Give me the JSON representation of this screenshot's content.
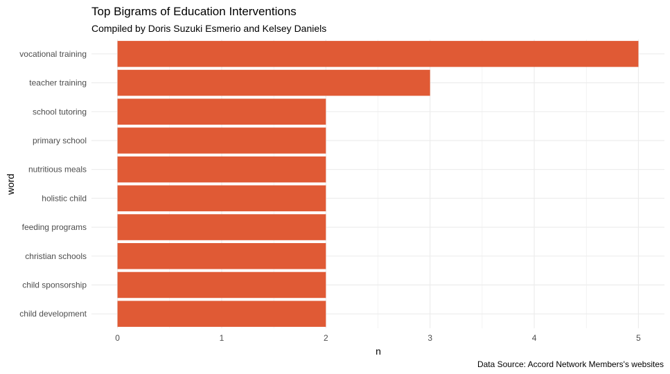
{
  "chart_data": {
    "type": "bar",
    "orientation": "horizontal",
    "title": "Top Bigrams of Education Interventions",
    "subtitle": "Compiled by Doris Suzuki Esmerio and Kelsey Daniels",
    "caption": "Data Source: Accord Network Members's websites",
    "xlabel": "n",
    "ylabel": "word",
    "categories": [
      "vocational training",
      "teacher training",
      "school tutoring",
      "primary school",
      "nutritious meals",
      "holistic child",
      "feeding programs",
      "christian schools",
      "child sponsorship",
      "child development"
    ],
    "values": [
      5,
      3,
      2,
      2,
      2,
      2,
      2,
      2,
      2,
      2
    ],
    "xlim": [
      -0.25,
      5.25
    ],
    "xticks": [
      "0",
      "1",
      "2",
      "3",
      "4",
      "5"
    ],
    "grid": true,
    "legend": "none",
    "bar_color": "#E05A35",
    "grid_color": "#EBEBEB"
  }
}
